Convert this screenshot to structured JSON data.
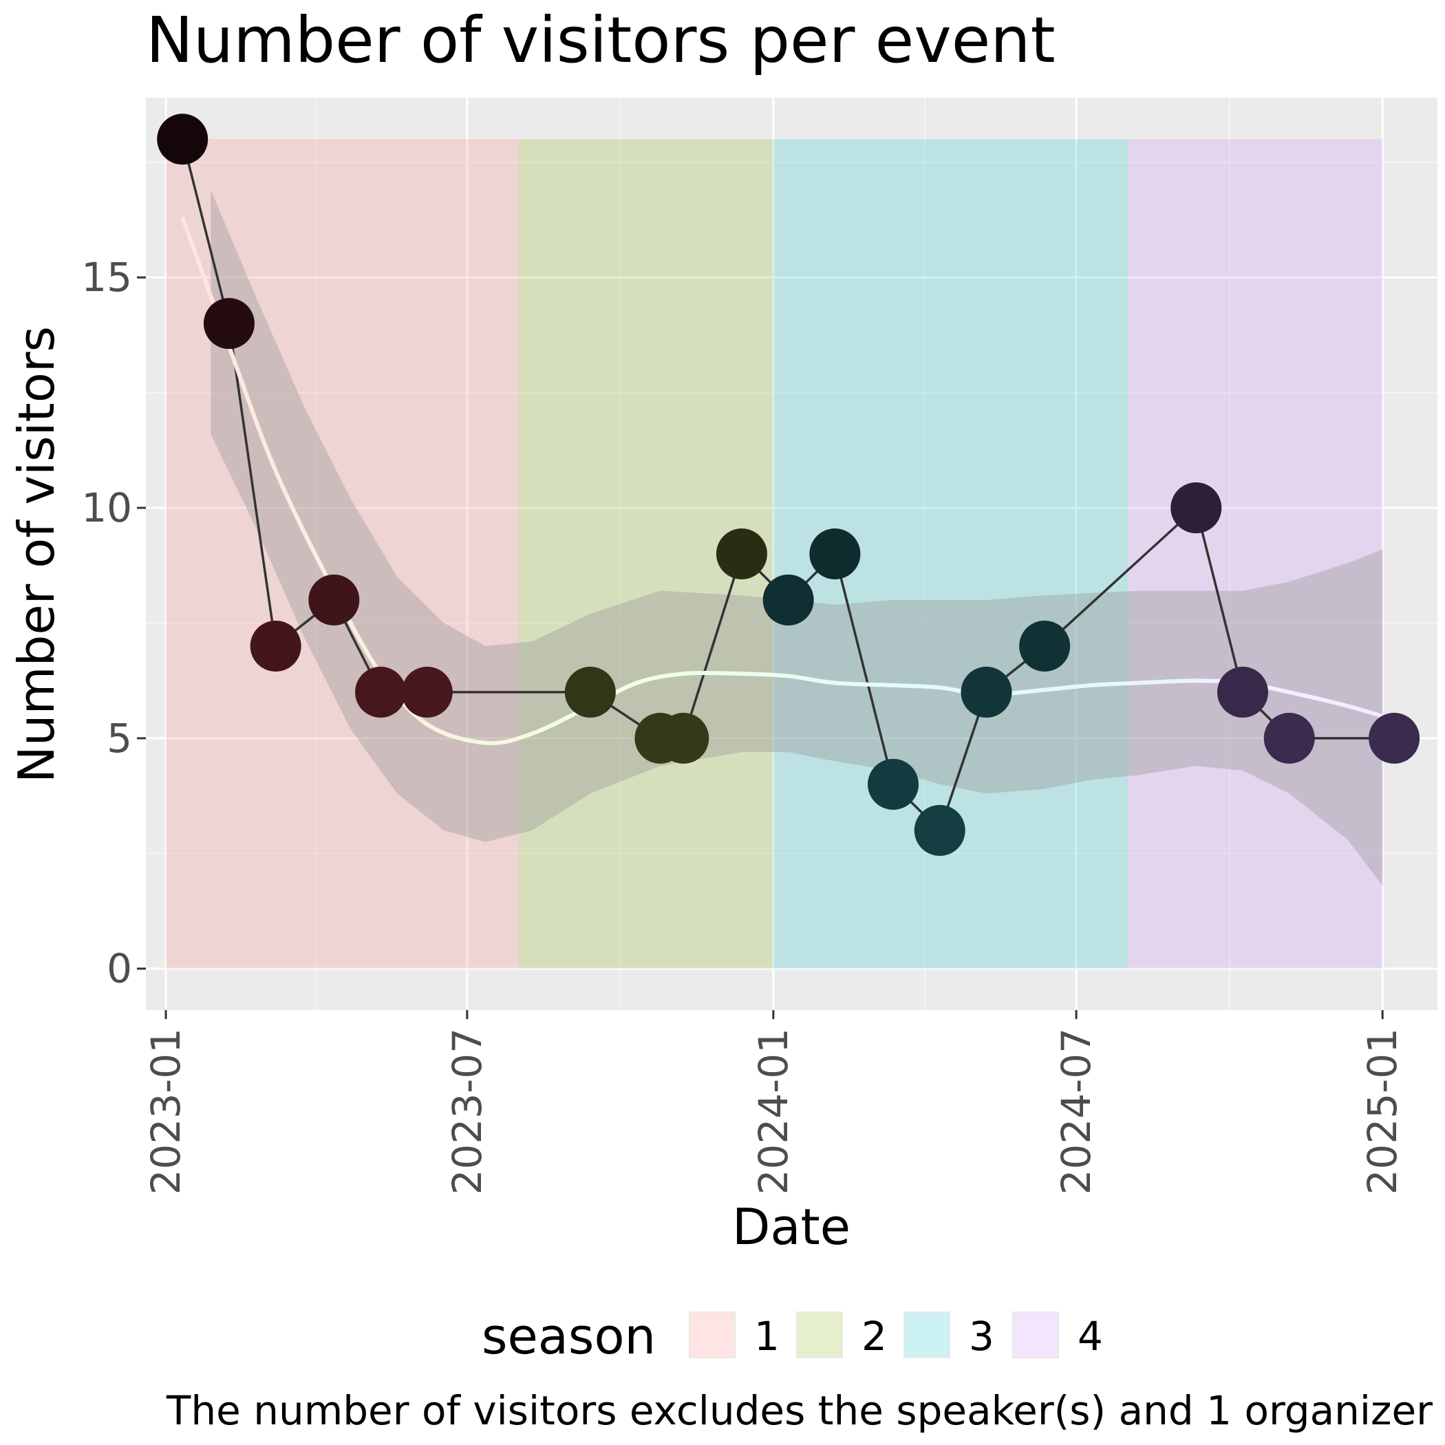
{
  "chart_data": {
    "type": "line",
    "title": "Number of visitors per event",
    "xlabel": "Date",
    "ylabel": "Number of visitors",
    "caption": "The number of visitors excludes the speaker(s) and 1 organizer",
    "x_ticks": [
      "2023-01",
      "2023-07",
      "2024-01",
      "2024-07",
      "2025-01"
    ],
    "x_range": [
      "2022-12-20",
      "2025-02-03"
    ],
    "y_ticks": [
      0,
      5,
      10,
      15
    ],
    "ylim": [
      -0.9,
      18.9
    ],
    "grid": true,
    "legend": {
      "title": "season",
      "position": "bottom",
      "entries": [
        {
          "label": "1",
          "color": "#F8766D"
        },
        {
          "label": "2",
          "color": "#7CAE00"
        },
        {
          "label": "3",
          "color": "#00BFC4"
        },
        {
          "label": "4",
          "color": "#C77CFF"
        }
      ]
    },
    "season_bands": [
      {
        "season": "1",
        "start": "2023-01-01",
        "end": "2023-08-01",
        "ymax": 18
      },
      {
        "season": "2",
        "start": "2023-08-01",
        "end": "2024-01-01",
        "ymax": 18
      },
      {
        "season": "3",
        "start": "2024-01-01",
        "end": "2024-08-01",
        "ymax": 18
      },
      {
        "season": "4",
        "start": "2024-08-01",
        "end": "2025-01-01",
        "ymax": 18
      }
    ],
    "series": [
      {
        "points": [
          {
            "date": "2023-01-11",
            "visitors": 18,
            "season": "1"
          },
          {
            "date": "2023-02-08",
            "visitors": 14,
            "season": "1"
          },
          {
            "date": "2023-03-08",
            "visitors": 7,
            "season": "1"
          },
          {
            "date": "2023-04-12",
            "visitors": 8,
            "season": "1"
          },
          {
            "date": "2023-05-10",
            "visitors": 6,
            "season": "1"
          },
          {
            "date": "2023-06-07",
            "visitors": 6,
            "season": "1"
          },
          {
            "date": "2023-09-13",
            "visitors": 6,
            "season": "2"
          },
          {
            "date": "2023-10-25",
            "visitors": 5,
            "season": "2"
          },
          {
            "date": "2023-11-08",
            "visitors": 5,
            "season": "2"
          },
          {
            "date": "2023-12-13",
            "visitors": 9,
            "season": "2"
          },
          {
            "date": "2024-01-10",
            "visitors": 8,
            "season": "3"
          },
          {
            "date": "2024-02-07",
            "visitors": 9,
            "season": "3"
          },
          {
            "date": "2024-03-13",
            "visitors": 4,
            "season": "3"
          },
          {
            "date": "2024-04-10",
            "visitors": 3,
            "season": "3"
          },
          {
            "date": "2024-05-08",
            "visitors": 6,
            "season": "3"
          },
          {
            "date": "2024-06-12",
            "visitors": 7,
            "season": "3"
          },
          {
            "date": "2024-09-11",
            "visitors": 10,
            "season": "4"
          },
          {
            "date": "2024-10-09",
            "visitors": 6,
            "season": "4"
          },
          {
            "date": "2024-11-06",
            "visitors": 5,
            "season": "4"
          },
          {
            "date": "2025-01-08",
            "visitors": 5,
            "season": "4"
          }
        ]
      }
    ],
    "smooth": {
      "fit": [
        {
          "date": "2023-01-11",
          "y": 16.3
        },
        {
          "date": "2023-02-08",
          "y": 13.5
        },
        {
          "date": "2023-03-08",
          "y": 10.8
        },
        {
          "date": "2023-04-12",
          "y": 8.2
        },
        {
          "date": "2023-05-10",
          "y": 6.4
        },
        {
          "date": "2023-06-07",
          "y": 5.3
        },
        {
          "date": "2023-07-12",
          "y": 4.9
        },
        {
          "date": "2023-08-09",
          "y": 5.1
        },
        {
          "date": "2023-09-13",
          "y": 5.7
        },
        {
          "date": "2023-10-11",
          "y": 6.2
        },
        {
          "date": "2023-11-08",
          "y": 6.4
        },
        {
          "date": "2023-12-13",
          "y": 6.4
        },
        {
          "date": "2024-01-10",
          "y": 6.35
        },
        {
          "date": "2024-02-07",
          "y": 6.2
        },
        {
          "date": "2024-03-13",
          "y": 6.15
        },
        {
          "date": "2024-04-10",
          "y": 6.1
        },
        {
          "date": "2024-05-08",
          "y": 5.95
        },
        {
          "date": "2024-06-12",
          "y": 6.05
        },
        {
          "date": "2024-07-10",
          "y": 6.15
        },
        {
          "date": "2024-08-07",
          "y": 6.2
        },
        {
          "date": "2024-09-11",
          "y": 6.25
        },
        {
          "date": "2024-10-09",
          "y": 6.2
        },
        {
          "date": "2024-11-06",
          "y": 6.0
        },
        {
          "date": "2024-12-11",
          "y": 5.7
        },
        {
          "date": "2025-01-08",
          "y": 5.4
        }
      ],
      "band": [
        {
          "date": "2023-01-28",
          "lo": 11.6,
          "hi": 16.9
        },
        {
          "date": "2023-02-25",
          "lo": 9.5,
          "hi": 14.5
        },
        {
          "date": "2023-03-25",
          "lo": 7.2,
          "hi": 12.2
        },
        {
          "date": "2023-04-22",
          "lo": 5.2,
          "hi": 10.2
        },
        {
          "date": "2023-05-20",
          "lo": 3.8,
          "hi": 8.5
        },
        {
          "date": "2023-06-17",
          "lo": 3.0,
          "hi": 7.5
        },
        {
          "date": "2023-07-12",
          "lo": 2.75,
          "hi": 7.0
        },
        {
          "date": "2023-08-09",
          "lo": 3.0,
          "hi": 7.1
        },
        {
          "date": "2023-09-13",
          "lo": 3.8,
          "hi": 7.7
        },
        {
          "date": "2023-10-25",
          "lo": 4.4,
          "hi": 8.2
        },
        {
          "date": "2023-12-13",
          "lo": 4.7,
          "hi": 8.1
        },
        {
          "date": "2024-01-10",
          "lo": 4.7,
          "hi": 8.0
        },
        {
          "date": "2024-02-07",
          "lo": 4.5,
          "hi": 7.9
        },
        {
          "date": "2024-03-13",
          "lo": 4.3,
          "hi": 8.0
        },
        {
          "date": "2024-04-10",
          "lo": 4.0,
          "hi": 8.0
        },
        {
          "date": "2024-05-08",
          "lo": 3.8,
          "hi": 8.0
        },
        {
          "date": "2024-06-12",
          "lo": 3.9,
          "hi": 8.1
        },
        {
          "date": "2024-07-10",
          "lo": 4.1,
          "hi": 8.15
        },
        {
          "date": "2024-08-07",
          "lo": 4.2,
          "hi": 8.2
        },
        {
          "date": "2024-09-11",
          "lo": 4.4,
          "hi": 8.2
        },
        {
          "date": "2024-10-09",
          "lo": 4.3,
          "hi": 8.2
        },
        {
          "date": "2024-11-06",
          "lo": 3.8,
          "hi": 8.4
        },
        {
          "date": "2024-12-11",
          "lo": 2.8,
          "hi": 8.8
        },
        {
          "date": "2025-01-01",
          "lo": 1.8,
          "hi": 9.1
        }
      ]
    }
  }
}
